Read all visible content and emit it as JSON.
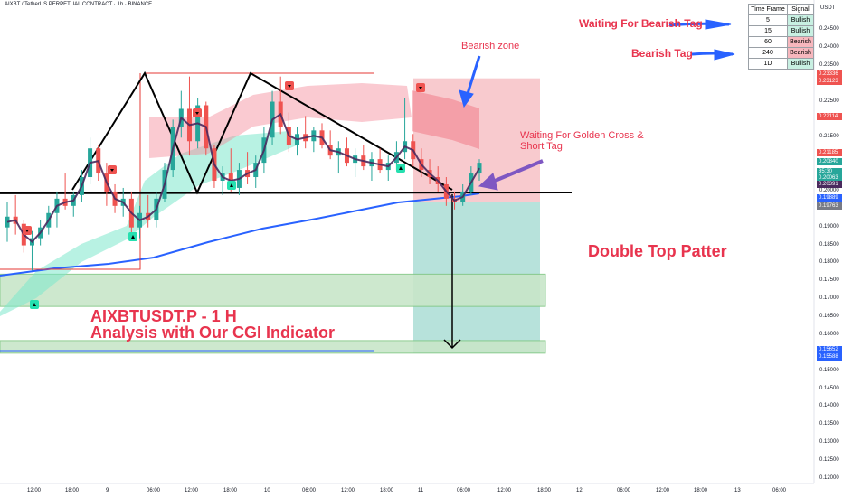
{
  "header": {
    "symbol_line": "AIXBT / TetherUS PERPETUAL CONTRACT · 1h · BINANCE",
    "currency": "USDT"
  },
  "signal_table": {
    "headers": [
      "Time Frame",
      "Signal"
    ],
    "rows": [
      {
        "tf": "5",
        "signal": "Bullish",
        "state": "bull"
      },
      {
        "tf": "15",
        "signal": "Bullish",
        "state": "bull"
      },
      {
        "tf": "60",
        "signal": "Bearish",
        "state": "bear"
      },
      {
        "tf": "240",
        "signal": "Bearish",
        "state": "bear"
      },
      {
        "tf": "1D",
        "signal": "Bullish",
        "state": "bull"
      }
    ]
  },
  "annotations": {
    "waiting_bearish": "Waiting For Bearish Tag",
    "bearish_tag": "Bearish Tag",
    "bearish_zone": "Bearish zone",
    "golden_cross_1": "Waiting For Golden Cross &",
    "golden_cross_2": "Short Tag",
    "pattern": "Double Top Patter",
    "title_1": "AIXBTUSDT.P - 1 H",
    "title_2": "Analysis with Our CGI Indicator"
  },
  "colors": {
    "bull": "#26a69a",
    "bear": "#ef5350",
    "ma_blue": "#2962ff",
    "ma_dark": "#4a2a5e",
    "accent_red": "#e8344e",
    "zone_green": "#a5d6a7"
  },
  "chart_data": {
    "type": "candlestick",
    "ylim": [
      0.12,
      0.255
    ],
    "y_ticks": [
      0.245,
      0.24,
      0.235,
      0.23,
      0.225,
      0.22,
      0.215,
      0.21,
      0.205,
      0.2,
      0.195,
      0.19,
      0.185,
      0.18,
      0.175,
      0.17,
      0.165,
      0.16,
      0.155,
      0.15,
      0.145,
      0.14,
      0.135,
      0.13,
      0.125,
      0.12
    ],
    "x_ticks": [
      "12:00",
      "18:00",
      "9",
      "06:00",
      "12:00",
      "18:00",
      "10",
      "06:00",
      "12:00",
      "18:00",
      "11",
      "06:00",
      "12:00",
      "18:00",
      "12",
      "06:00",
      "12:00",
      "18:00",
      "13",
      "06:00"
    ],
    "price_tags": [
      {
        "value": "0.23336",
        "color": "#ef5350"
      },
      {
        "value": "0.23123",
        "color": "#ef5350"
      },
      {
        "value": "0.22114",
        "color": "#ef5350"
      },
      {
        "value": "0.21185",
        "color": "#ef5350"
      },
      {
        "value": "0.20840",
        "color": "#26a69a"
      },
      {
        "value": "35:30",
        "color": "#26a69a"
      },
      {
        "value": "0.20063",
        "color": "#26a69a"
      },
      {
        "value": "0.20391",
        "color": "#4a2a5e"
      },
      {
        "value": "0.19889",
        "color": "#2962ff"
      },
      {
        "value": "0.19763",
        "color": "#787b86"
      },
      {
        "value": "0.15652",
        "color": "#2962ff"
      },
      {
        "value": "0.15588",
        "color": "#2962ff"
      }
    ],
    "neckline": 0.1995,
    "double_top": 0.232,
    "target": 0.158,
    "support_zones": [
      [
        0.168,
        0.177
      ],
      [
        0.155,
        0.1585
      ]
    ],
    "short_entry_zone": [
      0.197,
      0.2315
    ],
    "take_profit_zone": [
      0.155,
      0.197
    ],
    "candles": [
      [
        0.19,
        0.197,
        0.186,
        0.193
      ],
      [
        0.193,
        0.199,
        0.188,
        0.191
      ],
      [
        0.191,
        0.192,
        0.183,
        0.185
      ],
      [
        0.185,
        0.189,
        0.178,
        0.187
      ],
      [
        0.187,
        0.192,
        0.185,
        0.19
      ],
      [
        0.19,
        0.196,
        0.188,
        0.194
      ],
      [
        0.194,
        0.2,
        0.19,
        0.198
      ],
      [
        0.198,
        0.205,
        0.195,
        0.196
      ],
      [
        0.196,
        0.2,
        0.193,
        0.199
      ],
      [
        0.199,
        0.206,
        0.197,
        0.204
      ],
      [
        0.204,
        0.215,
        0.202,
        0.212
      ],
      [
        0.212,
        0.213,
        0.203,
        0.205
      ],
      [
        0.205,
        0.208,
        0.196,
        0.2
      ],
      [
        0.2,
        0.202,
        0.194,
        0.196
      ],
      [
        0.196,
        0.201,
        0.193,
        0.198
      ],
      [
        0.198,
        0.2,
        0.188,
        0.19
      ],
      [
        0.19,
        0.196,
        0.187,
        0.194
      ],
      [
        0.194,
        0.199,
        0.19,
        0.192
      ],
      [
        0.192,
        0.2,
        0.19,
        0.198
      ],
      [
        0.198,
        0.208,
        0.197,
        0.206
      ],
      [
        0.206,
        0.22,
        0.204,
        0.218
      ],
      [
        0.218,
        0.228,
        0.215,
        0.223
      ],
      [
        0.223,
        0.232,
        0.21,
        0.214
      ],
      [
        0.214,
        0.226,
        0.212,
        0.224
      ],
      [
        0.224,
        0.225,
        0.21,
        0.212
      ],
      [
        0.212,
        0.213,
        0.201,
        0.203
      ],
      [
        0.203,
        0.207,
        0.199,
        0.205
      ],
      [
        0.205,
        0.212,
        0.2,
        0.201
      ],
      [
        0.201,
        0.208,
        0.199,
        0.206
      ],
      [
        0.206,
        0.211,
        0.202,
        0.204
      ],
      [
        0.204,
        0.21,
        0.201,
        0.208
      ],
      [
        0.208,
        0.218,
        0.205,
        0.215
      ],
      [
        0.215,
        0.228,
        0.213,
        0.225
      ],
      [
        0.225,
        0.232,
        0.216,
        0.218
      ],
      [
        0.218,
        0.222,
        0.211,
        0.213
      ],
      [
        0.213,
        0.218,
        0.21,
        0.216
      ],
      [
        0.216,
        0.221,
        0.212,
        0.214
      ],
      [
        0.214,
        0.218,
        0.211,
        0.217
      ],
      [
        0.217,
        0.219,
        0.212,
        0.213
      ],
      [
        0.213,
        0.217,
        0.209,
        0.21
      ],
      [
        0.21,
        0.214,
        0.205,
        0.212
      ],
      [
        0.212,
        0.215,
        0.207,
        0.208
      ],
      [
        0.208,
        0.212,
        0.204,
        0.21
      ],
      [
        0.21,
        0.213,
        0.206,
        0.207
      ],
      [
        0.207,
        0.211,
        0.203,
        0.209
      ],
      [
        0.209,
        0.212,
        0.205,
        0.206
      ],
      [
        0.206,
        0.21,
        0.203,
        0.208
      ],
      [
        0.208,
        0.214,
        0.206,
        0.211
      ],
      [
        0.211,
        0.226,
        0.209,
        0.214
      ],
      [
        0.214,
        0.216,
        0.207,
        0.209
      ],
      [
        0.209,
        0.212,
        0.204,
        0.206
      ],
      [
        0.206,
        0.209,
        0.202,
        0.204
      ],
      [
        0.204,
        0.207,
        0.2,
        0.202
      ],
      [
        0.202,
        0.204,
        0.196,
        0.198
      ],
      [
        0.198,
        0.2,
        0.195,
        0.197
      ],
      [
        0.197,
        0.202,
        0.196,
        0.2
      ],
      [
        0.2,
        0.207,
        0.199,
        0.205
      ],
      [
        0.205,
        0.209,
        0.203,
        0.208
      ]
    ]
  }
}
